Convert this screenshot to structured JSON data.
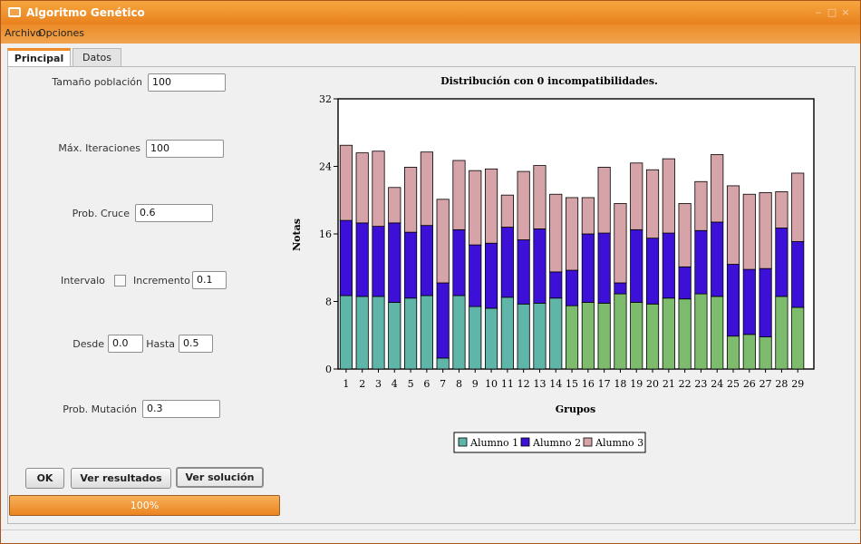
{
  "window": {
    "title": "Algoritmo Genético"
  },
  "window_buttons": {
    "minimize": "‒",
    "maximize": "□",
    "close": "×"
  },
  "menu": {
    "items": [
      "Archivo",
      "Opciones"
    ]
  },
  "tabs": [
    {
      "label": "Principal",
      "active": true
    },
    {
      "label": "Datos",
      "active": false
    }
  ],
  "form": {
    "population_label": "Tamaño población",
    "population_value": "100",
    "iterations_label": "Máx. Iteraciones",
    "iterations_value": "100",
    "crossover_label": "Prob. Cruce",
    "crossover_value": "0.6",
    "interval_label": "Intervalo",
    "interval_checked": false,
    "increment_label": "Incremento",
    "increment_value": "0.1",
    "from_label": "Desde",
    "from_value": "0.0",
    "to_label": "Hasta",
    "to_value": "0.5",
    "mutation_label": "Prob. Mutación",
    "mutation_value": "0.3"
  },
  "buttons": {
    "ok_label": "OK",
    "results_label": "Ver resultados",
    "solution_label": "Ver solución"
  },
  "progress": {
    "value": 1.0,
    "label": "100%"
  },
  "colors": {
    "accent_orange": "#f08c27",
    "alumno1": "#5fb5a7",
    "alumno2": "#3d10d7",
    "alumno3": "#d5a3a8",
    "alumno1_alt": "#7cbc6c"
  },
  "chart_data": {
    "type": "bar",
    "stacked": true,
    "title": "Distribución con 0 incompatibilidades.",
    "xlabel": "Grupos",
    "ylabel": "Notas",
    "ylim": [
      0,
      32
    ],
    "yticks": [
      "0",
      "8",
      "16",
      "24",
      "32"
    ],
    "categories": [
      "1",
      "2",
      "3",
      "4",
      "5",
      "6",
      "7",
      "8",
      "9",
      "10",
      "11",
      "12",
      "13",
      "14",
      "15",
      "16",
      "17",
      "18",
      "19",
      "20",
      "21",
      "22",
      "23",
      "24",
      "25",
      "26",
      "27",
      "28",
      "29"
    ],
    "legend_position": "bottom",
    "series": [
      {
        "name": "Alumno 1",
        "values": [
          8.7,
          8.6,
          8.6,
          7.9,
          8.4,
          8.7,
          1.3,
          8.7,
          7.4,
          7.2,
          8.5,
          7.7,
          7.8,
          8.4,
          7.5,
          7.9,
          7.8,
          8.9,
          7.9,
          7.7,
          8.4,
          8.3,
          8.9,
          8.6,
          3.9,
          4.1,
          3.8,
          8.6,
          7.3
        ]
      },
      {
        "name": "Alumno 2",
        "values": [
          8.9,
          8.7,
          8.3,
          9.4,
          7.8,
          8.3,
          8.9,
          7.8,
          7.3,
          7.7,
          8.3,
          7.6,
          8.8,
          3.1,
          4.2,
          8.1,
          8.3,
          1.3,
          8.6,
          7.8,
          7.7,
          3.8,
          7.5,
          8.8,
          8.5,
          7.7,
          8.1,
          8.1,
          7.8
        ]
      },
      {
        "name": "Alumno 3",
        "values": [
          8.9,
          8.3,
          8.9,
          4.2,
          7.7,
          8.7,
          9.9,
          8.2,
          8.8,
          8.8,
          3.8,
          8.1,
          7.5,
          9.2,
          8.6,
          4.3,
          7.8,
          9.4,
          7.9,
          8.1,
          8.8,
          7.5,
          5.8,
          8.0,
          9.3,
          8.9,
          9.0,
          4.3,
          8.1
        ]
      }
    ]
  }
}
